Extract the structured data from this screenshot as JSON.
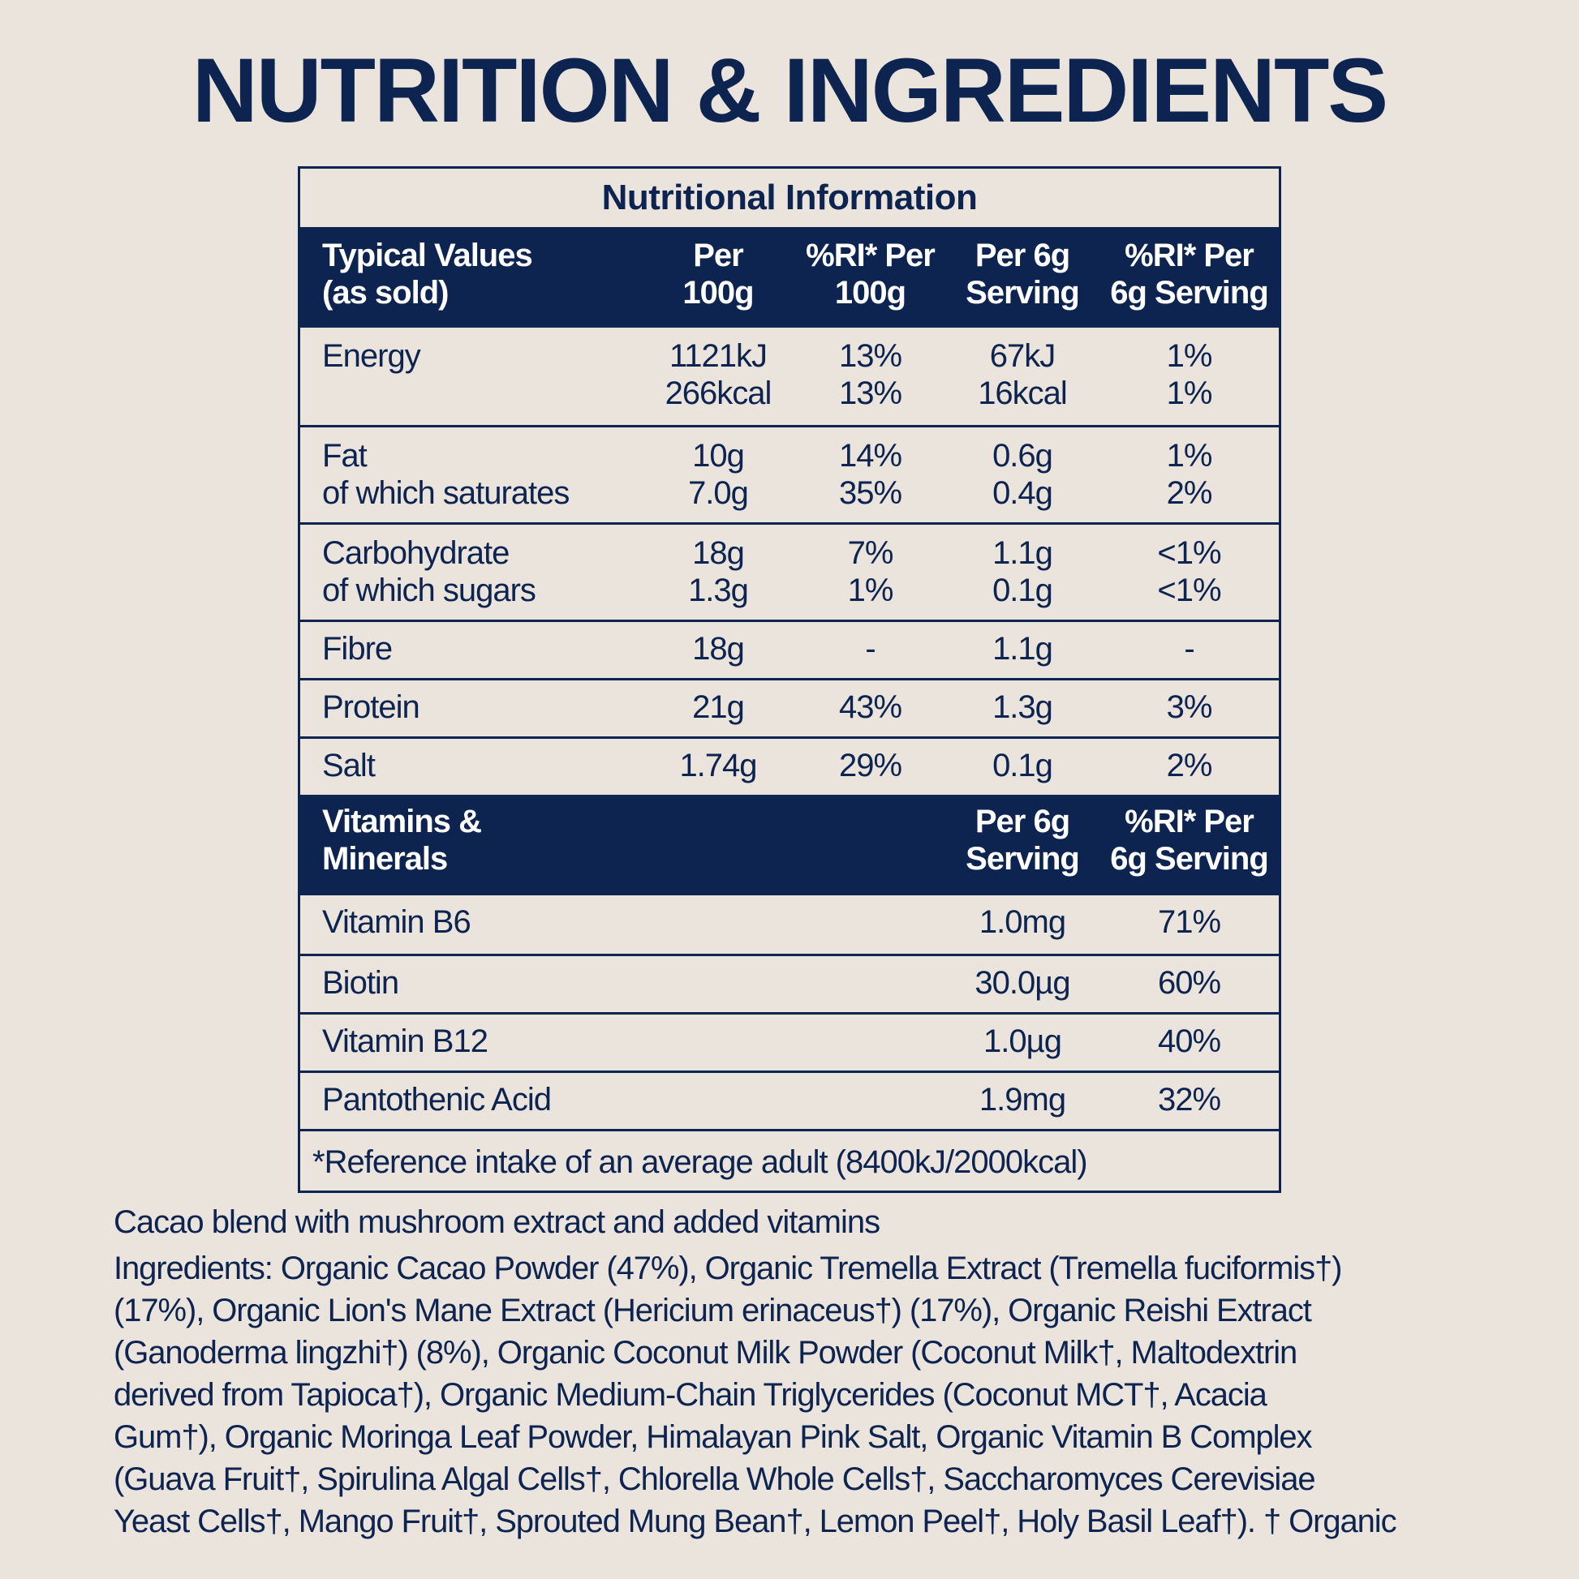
{
  "page": {
    "title": "NUTRITION & INGREDIENTS"
  },
  "panel": {
    "title": "Nutritional Information",
    "nutrition_header": [
      "Typical Values\n(as sold)",
      "Per\n100g",
      "%RI* Per\n100g",
      "Per 6g\nServing",
      "%RI* Per\n6g Serving"
    ],
    "nutrition_rows": [
      [
        "Energy",
        "1121kJ\n266kcal",
        "13%\n13%",
        "67kJ\n16kcal",
        "1%\n1%"
      ],
      [
        "Fat\nof which saturates",
        "10g\n7.0g",
        "14%\n35%",
        "0.6g\n0.4g",
        "1%\n2%"
      ],
      [
        "Carbohydrate\nof which sugars",
        "18g\n1.3g",
        "7%\n1%",
        "1.1g\n0.1g",
        "<1%\n<1%"
      ],
      [
        "Fibre",
        "18g",
        "-",
        "1.1g",
        "-"
      ],
      [
        "Protein",
        "21g",
        "43%",
        "1.3g",
        "3%"
      ],
      [
        "Salt",
        "1.74g",
        "29%",
        "0.1g",
        "2%"
      ]
    ],
    "vitamins_header": [
      "Vitamins &\nMinerals",
      "",
      "",
      "Per 6g\nServing",
      "%RI* Per\n6g Serving"
    ],
    "vitamin_rows": [
      [
        "Vitamin B6",
        "",
        "",
        "1.0mg",
        "71%"
      ],
      [
        "Biotin",
        "",
        "",
        "30.0µg",
        "60%"
      ],
      [
        "Vitamin B12",
        "",
        "",
        "1.0µg",
        "40%"
      ],
      [
        "Pantothenic Acid",
        "",
        "",
        "1.9mg",
        "32%"
      ]
    ],
    "footnote": "*Reference intake of an average adult (8400kJ/2000kcal)"
  },
  "product": {
    "description": "Cacao blend with mushroom extract and added vitamins",
    "ingredients_lines": [
      "Ingredients:  Organic Cacao Powder (47%), Organic Tremella Extract (Tremella fuciformis†)",
      "(17%), Organic Lion's Mane Extract (Hericium erinaceus†) (17%), Organic Reishi Extract",
      "(Ganoderma lingzhi†) (8%), Organic Coconut Milk Powder (Coconut Milk†, Maltodextrin",
      "derived from Tapioca†), Organic Medium-Chain Triglycerides (Coconut MCT†, Acacia",
      "Gum†), Organic Moringa Leaf Powder, Himalayan Pink Salt, Organic Vitamin B Complex",
      "(Guava Fruit†, Spirulina Algal Cells†, Chlorella Whole Cells†, Saccharomyces Cerevisiae",
      "Yeast Cells†, Mango Fruit†, Sprouted Mung Bean†, Lemon Peel†, Holy Basil Leaf†). † Organic"
    ]
  },
  "colors": {
    "background": "#ebe4dc",
    "navy": "#0d2350",
    "header_text": "#ffffff"
  }
}
